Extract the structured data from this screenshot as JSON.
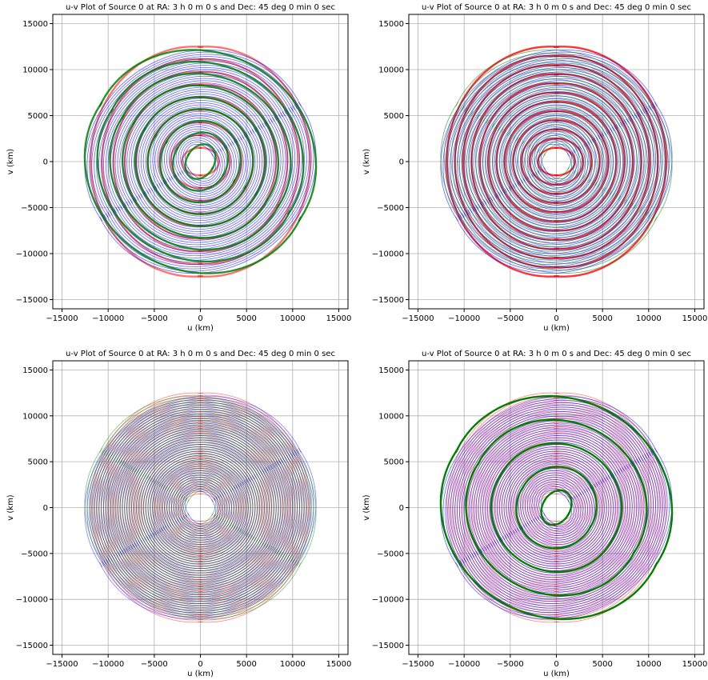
{
  "chart_data": [
    {
      "type": "scatter",
      "title": "u-v Plot of Source 0 at RA: 3 h 0 m 0 s and Dec: 45 deg 0 min 0 sec",
      "xlabel": "u (km)",
      "ylabel": "v (km)",
      "xlim": [
        -16000,
        16000
      ],
      "ylim": [
        -16000,
        16000
      ],
      "xticks": [
        -15000,
        -10000,
        -5000,
        0,
        5000,
        10000,
        15000
      ],
      "yticks": [
        -15000,
        -10000,
        -5000,
        0,
        5000,
        10000,
        15000
      ],
      "grid": true,
      "series": [
        {
          "color": "#ff0000",
          "angle_deg": 0,
          "bands": [
            0.0,
            1.0
          ],
          "opacity": 0.55,
          "arcs": 9
        },
        {
          "color": "#0000ff",
          "angle_deg": 120,
          "bands": [
            0.0,
            1.0
          ],
          "opacity": 0.55,
          "arcs": 44
        },
        {
          "color": "#008000",
          "angle_deg": 240,
          "bands": [
            0.0,
            1.0
          ],
          "opacity": 0.85,
          "arcs": 9
        }
      ]
    },
    {
      "type": "scatter",
      "title": "u-v Plot of Source 0 at RA: 3 h 0 m 0 s and Dec: 45 deg 0 min 0 sec",
      "xlabel": "u (km)",
      "ylabel": "v (km)",
      "xlim": [
        -16000,
        16000
      ],
      "ylim": [
        -16000,
        16000
      ],
      "xticks": [
        -15000,
        -10000,
        -5000,
        0,
        5000,
        10000,
        15000
      ],
      "yticks": [
        -15000,
        -10000,
        -5000,
        0,
        5000,
        10000,
        15000
      ],
      "grid": true,
      "series": [
        {
          "color": "#ff0000",
          "angle_deg": 0,
          "bands": [
            0.0,
            1.0
          ],
          "opacity": 0.8,
          "arcs": 12
        },
        {
          "color": "#0000ff",
          "angle_deg": 120,
          "bands": [
            0.0,
            1.0
          ],
          "opacity": 0.55,
          "arcs": 44
        },
        {
          "color": "#008000",
          "angle_deg": 240,
          "bands": [
            0.0,
            1.0
          ],
          "opacity": 0.55,
          "arcs": 30
        }
      ]
    },
    {
      "type": "scatter",
      "title": "u-v Plot of Source 0 at RA: 3 h 0 m 0 s and Dec: 45 deg 0 min 0 sec",
      "xlabel": "u (km)",
      "ylabel": "v (km)",
      "xlim": [
        -16000,
        16000
      ],
      "ylim": [
        -16000,
        16000
      ],
      "xticks": [
        -15000,
        -10000,
        -5000,
        0,
        5000,
        10000,
        15000
      ],
      "yticks": [
        -15000,
        -10000,
        -5000,
        0,
        5000,
        10000,
        15000
      ],
      "grid": true,
      "series": [
        {
          "color": "#ff0000",
          "angle_deg": 0,
          "bands": [
            0.0,
            1.0
          ],
          "opacity": 0.45,
          "arcs": 44
        },
        {
          "color": "#0000ff",
          "angle_deg": 120,
          "bands": [
            0.0,
            1.0
          ],
          "opacity": 0.45,
          "arcs": 44
        },
        {
          "color": "#008000",
          "angle_deg": 240,
          "bands": [
            0.0,
            1.0
          ],
          "opacity": 0.45,
          "arcs": 44
        }
      ]
    },
    {
      "type": "scatter",
      "title": "u-v Plot of Source 0 at RA: 3 h 0 m 0 s and Dec: 45 deg 0 min 0 sec",
      "xlabel": "u (km)",
      "ylabel": "v (km)",
      "xlim": [
        -16000,
        16000
      ],
      "ylim": [
        -16000,
        16000
      ],
      "xticks": [
        -15000,
        -10000,
        -5000,
        0,
        5000,
        10000,
        15000
      ],
      "yticks": [
        -15000,
        -10000,
        -5000,
        0,
        5000,
        10000,
        15000
      ],
      "grid": true,
      "series": [
        {
          "color": "#ff0000",
          "angle_deg": 0,
          "bands": [
            0.0,
            1.0
          ],
          "opacity": 0.45,
          "arcs": 44
        },
        {
          "color": "#0000ff",
          "angle_deg": 120,
          "bands": [
            0.0,
            1.0
          ],
          "opacity": 0.55,
          "arcs": 44
        },
        {
          "color": "#008000",
          "angle_deg": 240,
          "bands": [
            0.0,
            1.0
          ],
          "opacity": 1.0,
          "arcs": 5
        }
      ]
    }
  ]
}
